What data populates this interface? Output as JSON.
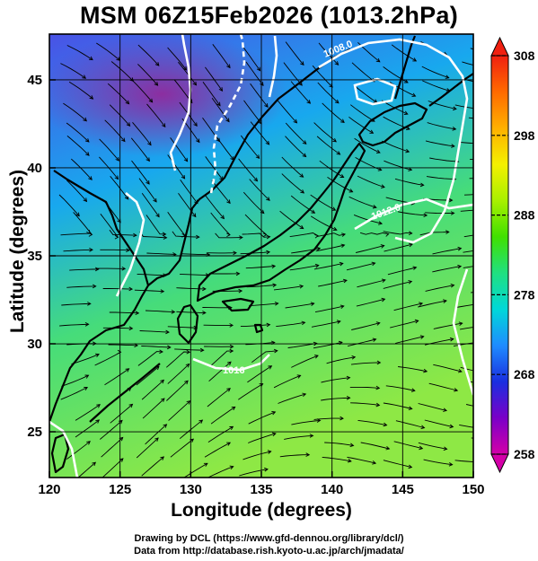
{
  "title": "MSM 06Z15Feb2026 (1013.2hPa)",
  "xlabel": "Longitude (degrees)",
  "ylabel": "Latitude  (degrees)",
  "credit_line1": "Drawing by DCL (https://www.gfd-dennou.org/library/dcl/)",
  "credit_line2": "Data from http://database.rish.kyoto-u.ac.jp/arch/jmadata/",
  "map": {
    "lon_range": [
      120,
      150
    ],
    "lat_range": [
      22.4,
      47.6
    ],
    "lon_ticks": [
      120,
      125,
      130,
      135,
      140,
      145,
      150
    ],
    "lat_ticks": [
      25,
      30,
      35,
      40,
      45
    ],
    "colorbar": {
      "min": 258,
      "max": 308,
      "tick_values": [
        258,
        268,
        278,
        288,
        298,
        308
      ],
      "colors": [
        "#d400a8",
        "#7a00c8",
        "#1a2fe0",
        "#1e8cff",
        "#00d8d8",
        "#20e080",
        "#40e000",
        "#a8f000",
        "#f4f000",
        "#ffb000",
        "#ff6a00",
        "#f02010"
      ]
    },
    "isobar_labels": [
      "1008.0",
      "1012.0",
      "1016"
    ],
    "field_colors": {
      "north": "#4a52e6",
      "siberia": "#8c2ea0",
      "sea_japan": "#18a8ee",
      "pacific": "#46dc7a",
      "south": "#8ee845"
    }
  }
}
